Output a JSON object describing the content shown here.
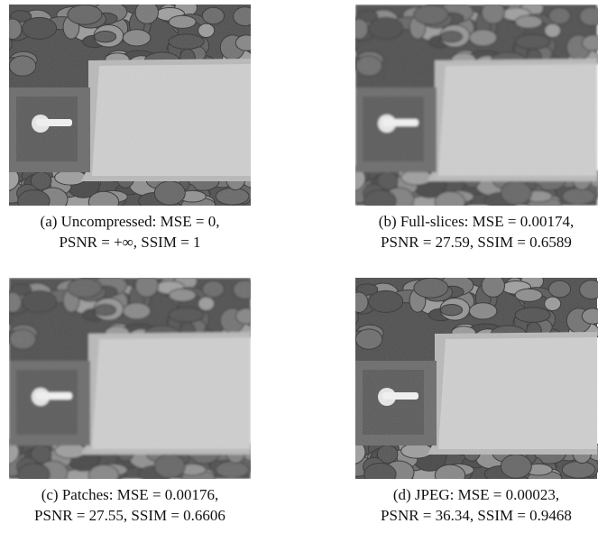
{
  "panels": [
    {
      "caption": [
        "(a) Uncompressed: MSE = 0,",
        "PSNR = +∞, SSIM = 1"
      ]
    },
    {
      "caption": [
        "(b) Full-slices: MSE = 0.00174,",
        "PSNR = 27.59, SSIM = 0.6589"
      ]
    },
    {
      "caption": [
        "(c) Patches: MSE = 0.00176,",
        "PSNR = 27.55, SSIM = 0.6606"
      ]
    },
    {
      "caption": [
        "(d) JPEG: MSE = 0.00023,",
        "PSNR = 36.34, SSIM = 0.9468"
      ]
    }
  ]
}
